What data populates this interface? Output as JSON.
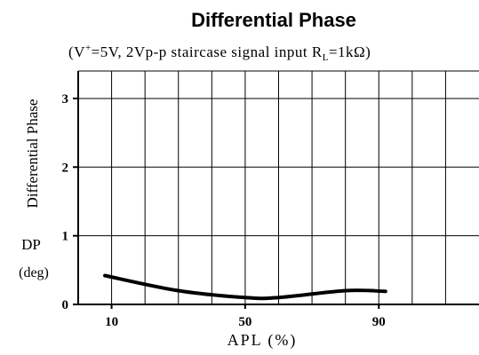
{
  "chart_data": {
    "type": "line",
    "title": "Differential Phase",
    "subtitle": "(V⁺=5V, 2Vp-p staircase signal input Rₗ=1kΩ)",
    "subtitle_parts": {
      "v": "(V",
      "v_sup": "+",
      "mid": "=5V, 2Vp-p staircase signal input R",
      "r_sub": "L",
      "end": "=1kΩ)"
    },
    "ylabel": "Differential Phase",
    "ylabel_symbol": "DP",
    "ylabel_unit": "(deg)",
    "xlabel": "APL (%)",
    "xlim": [
      0,
      120
    ],
    "ylim": [
      0,
      3.4
    ],
    "xticks": [
      10,
      50,
      90
    ],
    "yticks": [
      0,
      1,
      2,
      3
    ],
    "xticks_labels": [
      "10",
      "50",
      "90"
    ],
    "yticks_labels": [
      "0",
      "1",
      "2",
      "3"
    ],
    "grid": true,
    "series": [
      {
        "x": [
          8,
          30,
          50,
          60,
          80,
          92
        ],
        "y": [
          0.42,
          0.2,
          0.1,
          0.1,
          0.2,
          0.19
        ]
      }
    ],
    "colors": {
      "line": "#000000",
      "grid": "#000000",
      "background": "#ffffff"
    }
  }
}
